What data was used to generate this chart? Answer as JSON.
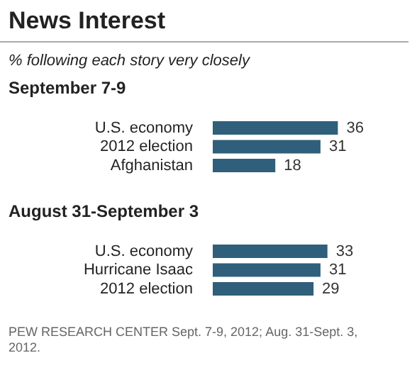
{
  "chart_data": [
    {
      "type": "bar",
      "orientation": "horizontal",
      "title": "News Interest",
      "subtitle": "% following each story very closely",
      "ylabel": "September 7-9",
      "categories": [
        "U.S. economy",
        "2012 election",
        "Afghanistan"
      ],
      "values": [
        36,
        31,
        18
      ],
      "color": "#2f5f7a",
      "data_labels": true
    },
    {
      "type": "bar",
      "orientation": "horizontal",
      "title": "August 31-September 3",
      "categories": [
        "U.S. economy",
        "Hurricane Isaac",
        "2012 election"
      ],
      "values": [
        33,
        31,
        29
      ],
      "color": "#2f5f7a",
      "data_labels": true,
      "annotations": [
        "PEW RESEARCH CENTER Sept. 7-9, 2012; Aug. 31-Sept. 3, 2012."
      ]
    }
  ]
}
